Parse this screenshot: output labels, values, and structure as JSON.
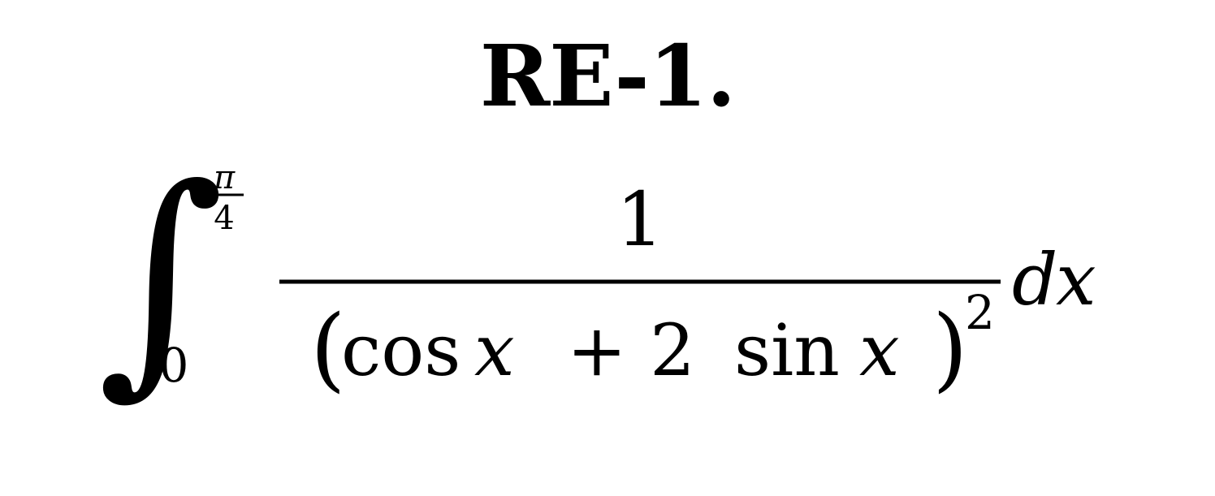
{
  "problem": {
    "label": "RE-1."
  },
  "integral": {
    "symbol": "∫",
    "lower_limit": "0",
    "upper_limit": {
      "numerator": "π",
      "denominator": "4"
    },
    "integrand": {
      "numerator": "1",
      "denominator": {
        "open_paren": "(",
        "cos": "cos",
        "x1": "x",
        "plus": "+",
        "coefficient": "2",
        "sin": "sin",
        "x2": "x",
        "close_paren": ")",
        "exponent": "2"
      }
    },
    "differential": {
      "d": "d",
      "x": "x"
    }
  }
}
